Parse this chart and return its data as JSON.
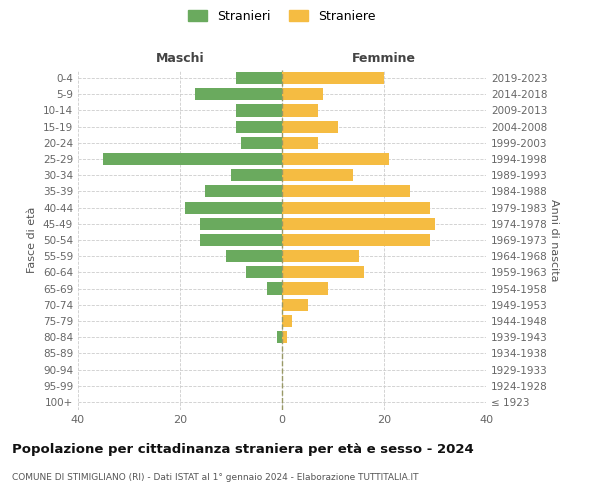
{
  "age_groups": [
    "100+",
    "95-99",
    "90-94",
    "85-89",
    "80-84",
    "75-79",
    "70-74",
    "65-69",
    "60-64",
    "55-59",
    "50-54",
    "45-49",
    "40-44",
    "35-39",
    "30-34",
    "25-29",
    "20-24",
    "15-19",
    "10-14",
    "5-9",
    "0-4"
  ],
  "birth_years": [
    "≤ 1923",
    "1924-1928",
    "1929-1933",
    "1934-1938",
    "1939-1943",
    "1944-1948",
    "1949-1953",
    "1954-1958",
    "1959-1963",
    "1964-1968",
    "1969-1973",
    "1974-1978",
    "1979-1983",
    "1984-1988",
    "1989-1993",
    "1994-1998",
    "1999-2003",
    "2004-2008",
    "2009-2013",
    "2014-2018",
    "2019-2023"
  ],
  "maschi": [
    0,
    0,
    0,
    0,
    1,
    0,
    0,
    3,
    7,
    11,
    16,
    16,
    19,
    15,
    10,
    35,
    8,
    9,
    9,
    17,
    9
  ],
  "femmine": [
    0,
    0,
    0,
    0,
    1,
    2,
    5,
    9,
    16,
    15,
    29,
    30,
    29,
    25,
    14,
    21,
    7,
    11,
    7,
    8,
    20
  ],
  "male_color": "#6aaa5e",
  "female_color": "#f5bc42",
  "background_color": "#ffffff",
  "grid_color": "#cccccc",
  "title": "Popolazione per cittadinanza straniera per età e sesso - 2024",
  "subtitle": "COMUNE DI STIMIGLIANO (RI) - Dati ISTAT al 1° gennaio 2024 - Elaborazione TUTTITALIA.IT",
  "xlabel_left": "Maschi",
  "xlabel_right": "Femmine",
  "ylabel_left": "Fasce di età",
  "ylabel_right": "Anni di nascita",
  "legend_male": "Stranieri",
  "legend_female": "Straniere",
  "xlim": 40
}
